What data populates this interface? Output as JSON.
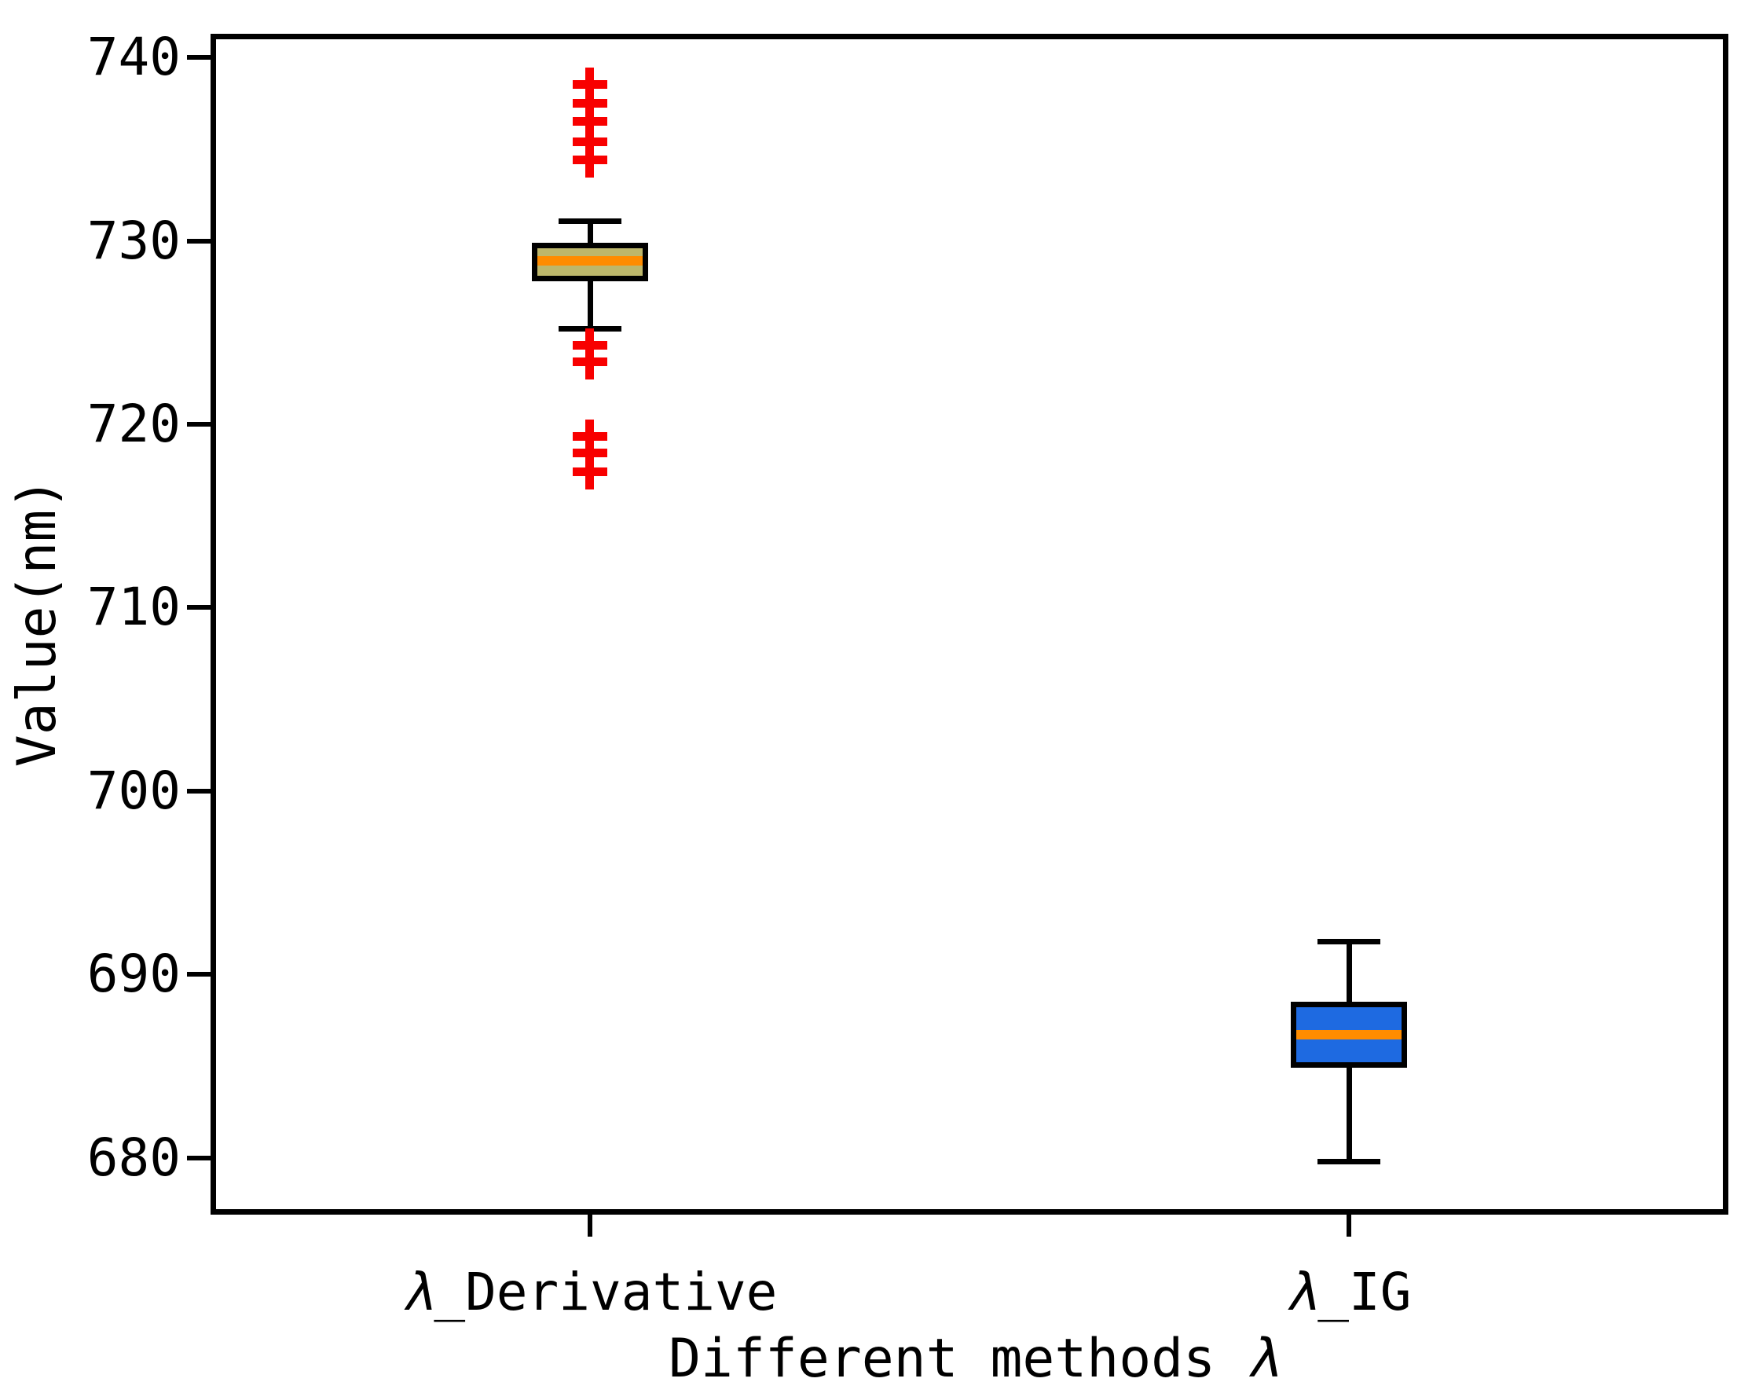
{
  "figure": {
    "background": "#ffffff",
    "ylabel": "Value(nm)",
    "xlabel": {
      "prefix": "Different methods ",
      "symbol": "λ"
    }
  },
  "chart_data": {
    "type": "boxplot",
    "title": "",
    "xlabel": "Different methods λ",
    "ylabel": "Value(nm)",
    "grid": false,
    "legend": null,
    "ylim": [
      676.9,
      741.3
    ],
    "xlim": [
      0.5,
      2.5
    ],
    "y_ticks": [
      740,
      730,
      720,
      710,
      700,
      690,
      680
    ],
    "categories": [
      "λ_Derivative",
      "λ_IG"
    ],
    "category_parts": [
      {
        "symbol": "λ",
        "rest": "_Derivative"
      },
      {
        "symbol": "λ",
        "rest": "_IG"
      }
    ],
    "colors": {
      "edge": "#000000",
      "median": "#ff8c00",
      "outlier": "#f80000"
    },
    "boxes": [
      {
        "name": "λ_Derivative",
        "x_position": 1,
        "whisker_low": 725.2,
        "q1": 727.8,
        "median": 728.9,
        "q3": 729.9,
        "whisker_high": 731.1,
        "outliers_above": [
          738.5,
          737.5,
          736.5,
          735.4,
          734.4
        ],
        "outliers_below": [
          724.3,
          723.4,
          719.3,
          718.4,
          717.4
        ],
        "fill": "#bdb76b"
      },
      {
        "name": "λ_IG",
        "x_position": 2,
        "whisker_low": 679.8,
        "q1": 684.9,
        "median": 686.7,
        "q3": 688.5,
        "whisker_high": 691.8,
        "outliers_above": [],
        "outliers_below": [],
        "fill": "#1e6ae1"
      }
    ]
  }
}
